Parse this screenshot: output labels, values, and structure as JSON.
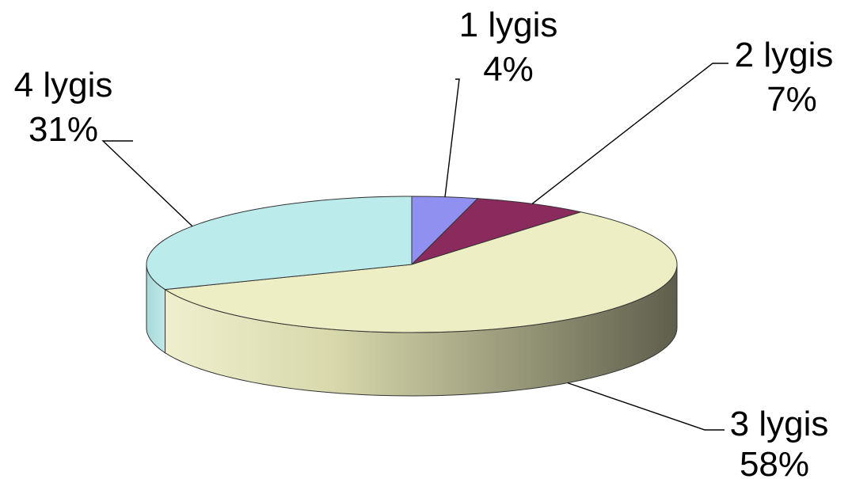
{
  "chart_data": {
    "type": "pie",
    "style": "3d",
    "title": "",
    "slices": [
      {
        "label": "1 lygis",
        "value": 4,
        "value_label": "4%",
        "color": "#9090F0"
      },
      {
        "label": "2 lygis",
        "value": 7,
        "value_label": "7%",
        "color": "#8B2A5C"
      },
      {
        "label": "3 lygis",
        "value": 58,
        "value_label": "58%",
        "color": "#EEEEC4"
      },
      {
        "label": "4 lygis",
        "value": 31,
        "value_label": "31%",
        "color": "#BCEBEB"
      }
    ],
    "legend": "none",
    "data_labels": "outside with leader lines"
  }
}
